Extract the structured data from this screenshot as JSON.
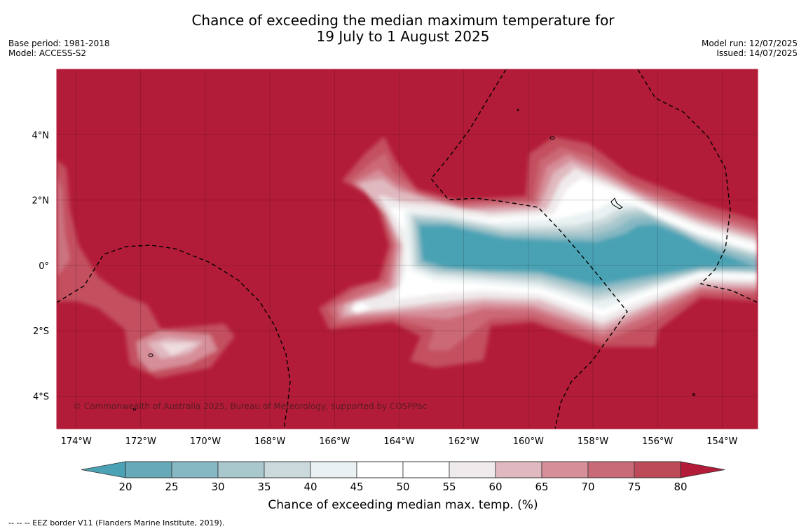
{
  "title": {
    "line1": "Chance of exceeding the median maximum temperature for",
    "line2": "19 July to 1 August 2025"
  },
  "meta_left": {
    "base_period": "Base period: 1981-2018",
    "model": "Model: ACCESS-S2"
  },
  "meta_right": {
    "model_run": "Model run: 12/07/2025",
    "issued": "Issued: 14/07/2025"
  },
  "map": {
    "lon_range": [
      -174.6,
      -152.9
    ],
    "lat_range": [
      -5.0,
      6.0
    ],
    "lon_ticks": [
      {
        "value": -174,
        "label": "174°W"
      },
      {
        "value": -172,
        "label": "172°W"
      },
      {
        "value": -170,
        "label": "170°W"
      },
      {
        "value": -168,
        "label": "168°W"
      },
      {
        "value": -166,
        "label": "166°W"
      },
      {
        "value": -164,
        "label": "164°W"
      },
      {
        "value": -162,
        "label": "162°W"
      },
      {
        "value": -160,
        "label": "160°W"
      },
      {
        "value": -158,
        "label": "158°W"
      },
      {
        "value": -156,
        "label": "156°W"
      },
      {
        "value": -154,
        "label": "154°W"
      }
    ],
    "lat_ticks": [
      {
        "value": 4,
        "label": "4°N"
      },
      {
        "value": 2,
        "label": "2°N"
      },
      {
        "value": 0,
        "label": "0°"
      },
      {
        "value": -2,
        "label": "2°S"
      },
      {
        "value": -4,
        "label": "4°S"
      }
    ],
    "background_color": "#b31c38",
    "copyright": "© Commonwealth of Australia 2025, Bureau of Meteorology, supported by COSPPac"
  },
  "colorbar": {
    "label": "Chance of exceeding median max. temp. (%)",
    "ticks": [
      "20",
      "25",
      "30",
      "35",
      "40",
      "45",
      "50",
      "55",
      "60",
      "65",
      "70",
      "75",
      "80"
    ],
    "colors": [
      "#66aab9",
      "#86b8c3",
      "#a9c8cd",
      "#cad9dc",
      "#e9f1f2",
      "#ffffff",
      "#ffffff",
      "#efeaeb",
      "#e0b9c0",
      "#d68e99",
      "#c86a78",
      "#bd4a58"
    ],
    "under_color": "#4aa2b4",
    "over_color": "#b31c38"
  },
  "footer": {
    "legend": "--  --  -- EEZ border V11 (Flanders Marine Institute, 2019)."
  }
}
